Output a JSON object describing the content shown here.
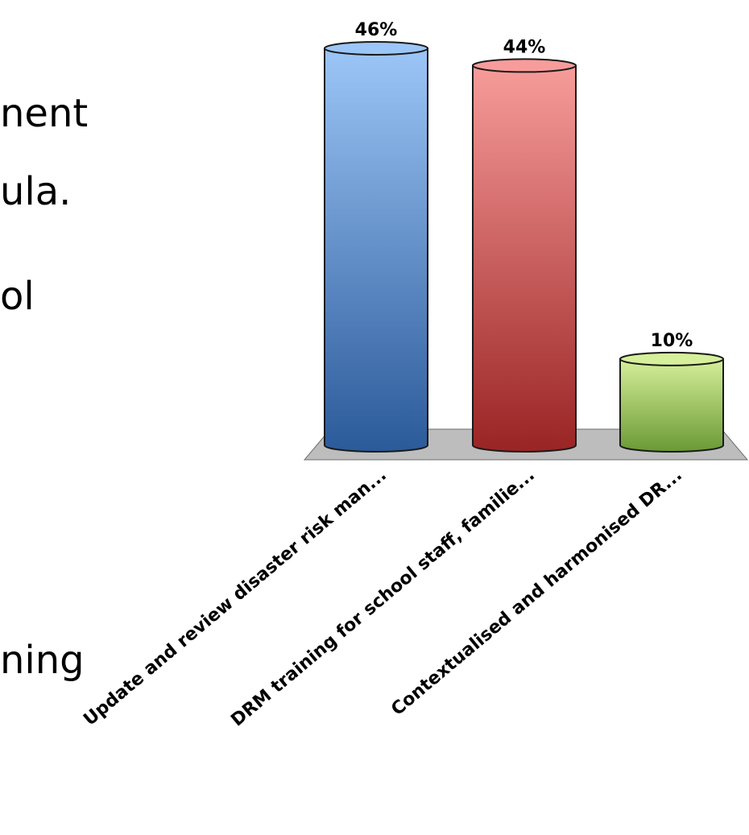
{
  "slide_text": [
    "nent",
    "ula.",
    "ol",
    "ning"
  ],
  "colors": {
    "blue_top": "#9cc6f7",
    "blue_bottom": "#2b5a9a",
    "red_top": "#f79c9a",
    "red_bottom": "#9a2424",
    "green_top": "#d6ef9a",
    "green_bottom": "#6a9a34",
    "floor": "#bdbdbd"
  },
  "chart_data": {
    "type": "bar",
    "categories": [
      "Update and review disaster risk man...",
      "DRM training for school staff, familie...",
      "Contextualised and harmonised DR..."
    ],
    "values": [
      46,
      44,
      10
    ],
    "value_labels": [
      "46%",
      "44%",
      "10%"
    ],
    "ylim": [
      0,
      46
    ],
    "grid": false,
    "legend": "none",
    "title": "",
    "xlabel": "",
    "ylabel": ""
  }
}
